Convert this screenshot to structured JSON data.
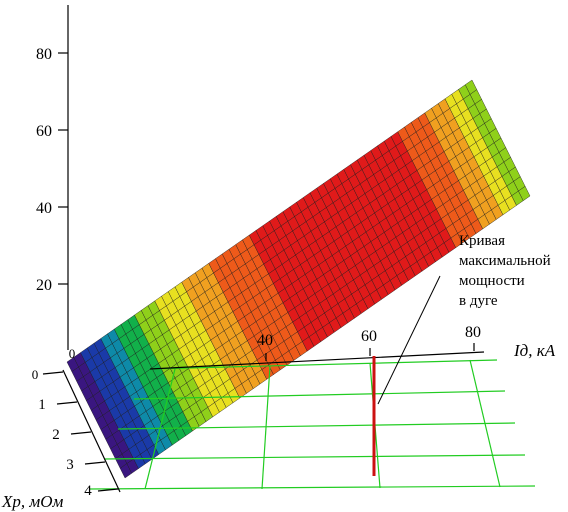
{
  "chart_data": {
    "type": "surface3d",
    "title": "",
    "z_ticks": [
      "0",
      "20",
      "40",
      "60",
      "80"
    ],
    "x_ticks": [
      "40",
      "60",
      "80"
    ],
    "y_ticks": [
      "0",
      "1",
      "2",
      "3",
      "4"
    ],
    "x_axis_label": "Iд, кА",
    "y_axis_label": "Xр, мОм",
    "zlim": [
      0,
      95
    ],
    "xlim": [
      0,
      90
    ],
    "ylim": [
      0,
      4
    ],
    "surface_peak": {
      "x": 60,
      "z": 90
    },
    "surface_z_at_x0": 0,
    "surface_z_at_x_max": 42,
    "annotation": {
      "lines": [
        "Кривая",
        "максимальной",
        "мощности",
        "в дуге"
      ],
      "x_value": 60
    },
    "colors": {
      "grid": "#22cc22",
      "max_power_line": "#cc1111",
      "colormap": [
        "#3a1680",
        "#1a3aa8",
        "#0e8aa8",
        "#12b04a",
        "#8fd01a",
        "#e8e020",
        "#f0a020",
        "#ee5a1a",
        "#e01a1a"
      ]
    }
  }
}
